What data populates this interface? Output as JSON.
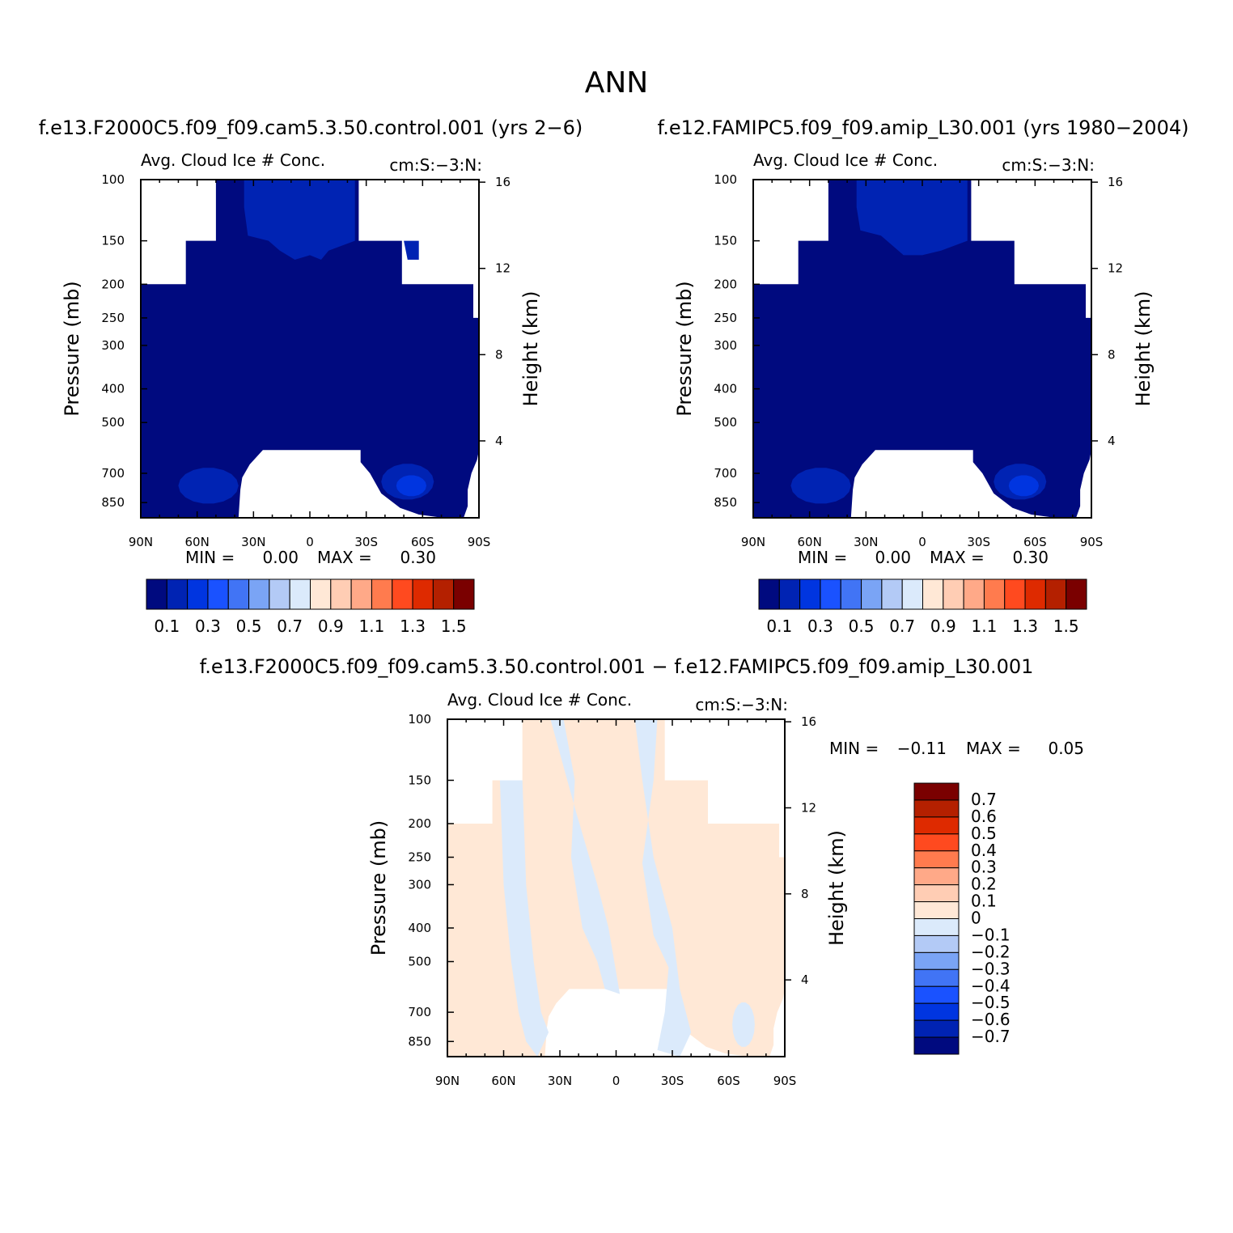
{
  "figure": {
    "season": "ANN",
    "top_left_title": "f.e13.F2000C5.f09_f09.cam5.3.50.control.001 (yrs 2-6)",
    "top_right_title": "f.e12.FAMIPC5.f09_f09.amip_L30.001 (yrs 1980-2004)",
    "diff_title": "f.e13.F2000C5.f09_f09.cam5.3.50.control.001 - f.e12.FAMIPC5.f09_f09.amip_L30.001"
  },
  "chart_data": [
    {
      "id": "panel-control",
      "type": "heatmap",
      "variable": "Avg. Cloud Ice # Conc.",
      "units": "cm:S:-3:N:",
      "ylabel": "Pressure (mb)",
      "ylabel_right": "Height (km)",
      "x_ticks": [
        "90N",
        "60N",
        "30N",
        "0",
        "30S",
        "60S",
        "90S"
      ],
      "y_ticks": [
        "100",
        "150",
        "200",
        "250",
        "300",
        "400",
        "500",
        "700",
        "850"
      ],
      "y_ticks_right": [
        "16",
        "12",
        "8",
        "4"
      ],
      "x_range": [
        90,
        -90
      ],
      "y_range_mb": [
        100,
        1000
      ],
      "stats": {
        "min_label": "MIN =",
        "min": "0.00",
        "max_label": "MAX =",
        "max": "0.30"
      },
      "colorbar": {
        "orientation": "horizontal",
        "colors": [
          "#000a7f",
          "#0023b3",
          "#0035e0",
          "#1a52ff",
          "#4174f5",
          "#7aa4f5",
          "#b3caf6",
          "#dbeafb",
          "#ffe8d6",
          "#ffcdb4",
          "#ffa988",
          "#ff7b4e",
          "#ff4a1f",
          "#de2a00",
          "#b42000",
          "#7a0000"
        ],
        "labels": [
          "0.1",
          "0.3",
          "0.5",
          "0.7",
          "0.9",
          "1.1",
          "1.3",
          "1.5"
        ]
      }
    },
    {
      "id": "panel-amip",
      "type": "heatmap",
      "variable": "Avg. Cloud Ice # Conc.",
      "units": "cm:S:-3:N:",
      "ylabel": "Pressure (mb)",
      "ylabel_right": "Height (km)",
      "x_ticks": [
        "90N",
        "60N",
        "30N",
        "0",
        "30S",
        "60S",
        "90S"
      ],
      "y_ticks": [
        "100",
        "150",
        "200",
        "250",
        "300",
        "400",
        "500",
        "700",
        "850"
      ],
      "y_ticks_right": [
        "16",
        "12",
        "8",
        "4"
      ],
      "x_range": [
        90,
        -90
      ],
      "y_range_mb": [
        100,
        1000
      ],
      "stats": {
        "min_label": "MIN =",
        "min": "0.00",
        "max_label": "MAX =",
        "max": "0.30"
      },
      "colorbar": {
        "orientation": "horizontal",
        "colors": [
          "#000a7f",
          "#0023b3",
          "#0035e0",
          "#1a52ff",
          "#4174f5",
          "#7aa4f5",
          "#b3caf6",
          "#dbeafb",
          "#ffe8d6",
          "#ffcdb4",
          "#ffa988",
          "#ff7b4e",
          "#ff4a1f",
          "#de2a00",
          "#b42000",
          "#7a0000"
        ],
        "labels": [
          "0.1",
          "0.3",
          "0.5",
          "0.7",
          "0.9",
          "1.1",
          "1.3",
          "1.5"
        ]
      }
    },
    {
      "id": "panel-diff",
      "type": "heatmap",
      "variable": "Avg. Cloud Ice # Conc.",
      "units": "cm:S:-3:N:",
      "ylabel": "Pressure (mb)",
      "ylabel_right": "Height (km)",
      "x_ticks": [
        "90N",
        "60N",
        "30N",
        "0",
        "30S",
        "60S",
        "90S"
      ],
      "y_ticks": [
        "100",
        "150",
        "200",
        "250",
        "300",
        "400",
        "500",
        "700",
        "850"
      ],
      "y_ticks_right": [
        "16",
        "12",
        "8",
        "4"
      ],
      "x_range": [
        90,
        -90
      ],
      "y_range_mb": [
        100,
        1000
      ],
      "stats": {
        "min_label": "MIN =",
        "min": "-0.11",
        "max_label": "MAX =",
        "max": "0.05"
      },
      "colorbar": {
        "orientation": "vertical",
        "colors": [
          "#7a0000",
          "#b42000",
          "#de2a00",
          "#ff4a1f",
          "#ff7b4e",
          "#ffa988",
          "#ffcdb4",
          "#ffe8d6",
          "#dbeafb",
          "#b3caf6",
          "#7aa4f5",
          "#4174f5",
          "#1a52ff",
          "#0035e0",
          "#0023b3",
          "#000a7f"
        ],
        "labels": [
          "0.7",
          "0.6",
          "0.5",
          "0.4",
          "0.3",
          "0.2",
          "0.1",
          "0",
          "-0.1",
          "-0.2",
          "-0.3",
          "-0.4",
          "-0.5",
          "-0.6",
          "-0.7"
        ]
      }
    }
  ]
}
